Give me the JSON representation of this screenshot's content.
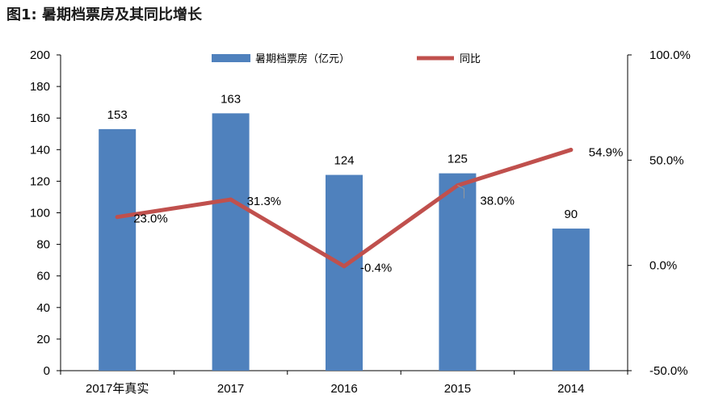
{
  "figure_title": "图1:  暑期档票房及其同比增长",
  "chart_data": {
    "type": "bar",
    "categories": [
      "2017年真实",
      "2017",
      "2016",
      "2015",
      "2014"
    ],
    "series": [
      {
        "name": "暑期档票房（亿元）",
        "type": "bar",
        "axis": "left",
        "color": "#4f81bd",
        "values": [
          153,
          163,
          124,
          125,
          90
        ],
        "labels": [
          "153",
          "163",
          "124",
          "125",
          "90"
        ]
      },
      {
        "name": "同比",
        "type": "line",
        "axis": "right",
        "color": "#c0504d",
        "values": [
          23.0,
          31.3,
          -0.4,
          38.0,
          54.9
        ],
        "labels": [
          "23.0%",
          "31.3%",
          "-0.4%",
          "38.0%",
          "54.9%"
        ]
      }
    ],
    "y_left": {
      "min": 0,
      "max": 200,
      "ticks": [
        "0",
        "20",
        "40",
        "60",
        "80",
        "100",
        "120",
        "140",
        "160",
        "180",
        "200"
      ]
    },
    "y_right": {
      "min": -50,
      "max": 100,
      "ticks": [
        "-50.0%",
        "0.0%",
        "50.0%",
        "100.0%"
      ]
    },
    "legend": {
      "placement": "top-center",
      "items": [
        "暑期档票房（亿元）",
        "同比"
      ]
    },
    "grid": false
  }
}
